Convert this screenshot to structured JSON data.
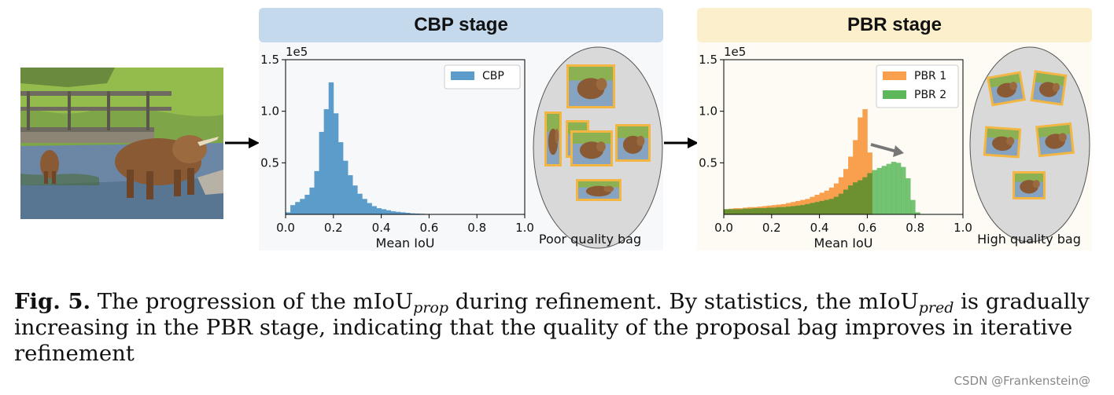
{
  "figure": {
    "cbp_stage_title": "CBP stage",
    "pbr_stage_title": "PBR stage",
    "poor_bag_label": "Poor quality bag",
    "high_bag_label": "High quality bag",
    "colors": {
      "cbp_header": "#c5d9ec",
      "pbr_header": "#fcf0cc",
      "cbp": "#5b9ccb",
      "pbr1": "#f8a04d",
      "pbr2": "#5cb85a",
      "overlap": "#6d9130",
      "box": "#f4b642",
      "bag": "#d9d9d9"
    }
  },
  "caption": {
    "fig_label": "Fig. 5.",
    "part1": " The progression of the mIoU",
    "sub1": "prop",
    "part2": " during refinement. By statistics, the mIoU",
    "sub2": "pred",
    "part3": " is gradually increasing in the PBR stage, indicating that the quality of the proposal bag improves in iterative refinement"
  },
  "watermark": "CSDN @Frankenstein@",
  "chart_data": [
    {
      "type": "bar",
      "xlabel": "Mean IoU",
      "ylabel": "",
      "scale_label": "1e5",
      "xlim": [
        0,
        1.0
      ],
      "ylim": [
        0,
        1.5
      ],
      "xticks": [
        "0.0",
        "0.2",
        "0.4",
        "0.6",
        "0.8",
        "1.0"
      ],
      "yticks": [
        "0.5",
        "1.0",
        "1.5"
      ],
      "bin_width": 0.02,
      "legend_position": "top-right",
      "series": [
        {
          "name": "CBP",
          "color": "#5b9ccb",
          "bin_start": 0.0,
          "values": [
            0.02,
            0.09,
            0.12,
            0.15,
            0.19,
            0.26,
            0.42,
            0.8,
            1.02,
            1.28,
            0.98,
            0.7,
            0.52,
            0.38,
            0.28,
            0.2,
            0.15,
            0.11,
            0.08,
            0.06,
            0.05,
            0.04,
            0.03,
            0.025,
            0.02,
            0.015,
            0.01,
            0.008,
            0.006,
            0.004,
            0.003,
            0.002,
            0.002,
            0.001,
            0.001
          ]
        }
      ]
    },
    {
      "type": "bar",
      "xlabel": "Mean IoU",
      "ylabel": "",
      "scale_label": "1e5",
      "xlim": [
        0,
        1.0
      ],
      "ylim": [
        0,
        1.5
      ],
      "xticks": [
        "0.0",
        "0.2",
        "0.4",
        "0.6",
        "0.8",
        "1.0"
      ],
      "yticks": [
        "0.5",
        "1.0",
        "1.5"
      ],
      "bin_width": 0.02,
      "legend_position": "top-right",
      "series": [
        {
          "name": "PBR 1",
          "color": "#f8a04d",
          "bin_start": 0.0,
          "values": [
            0.05,
            0.055,
            0.06,
            0.06,
            0.065,
            0.07,
            0.07,
            0.075,
            0.08,
            0.085,
            0.09,
            0.095,
            0.1,
            0.11,
            0.12,
            0.13,
            0.14,
            0.15,
            0.17,
            0.19,
            0.21,
            0.23,
            0.26,
            0.3,
            0.36,
            0.44,
            0.56,
            0.72,
            0.94,
            1.02,
            0.6
          ]
        },
        {
          "name": "PBR 2",
          "color": "#5cb85a",
          "bin_start": 0.0,
          "values": [
            0.05,
            0.05,
            0.05,
            0.05,
            0.055,
            0.055,
            0.06,
            0.06,
            0.06,
            0.065,
            0.065,
            0.07,
            0.07,
            0.075,
            0.08,
            0.085,
            0.09,
            0.1,
            0.11,
            0.12,
            0.13,
            0.14,
            0.15,
            0.17,
            0.2,
            0.24,
            0.28,
            0.31,
            0.33,
            0.36,
            0.4,
            0.43,
            0.45,
            0.47,
            0.49,
            0.51,
            0.5,
            0.46,
            0.35,
            0.14,
            0.02
          ]
        }
      ]
    }
  ]
}
